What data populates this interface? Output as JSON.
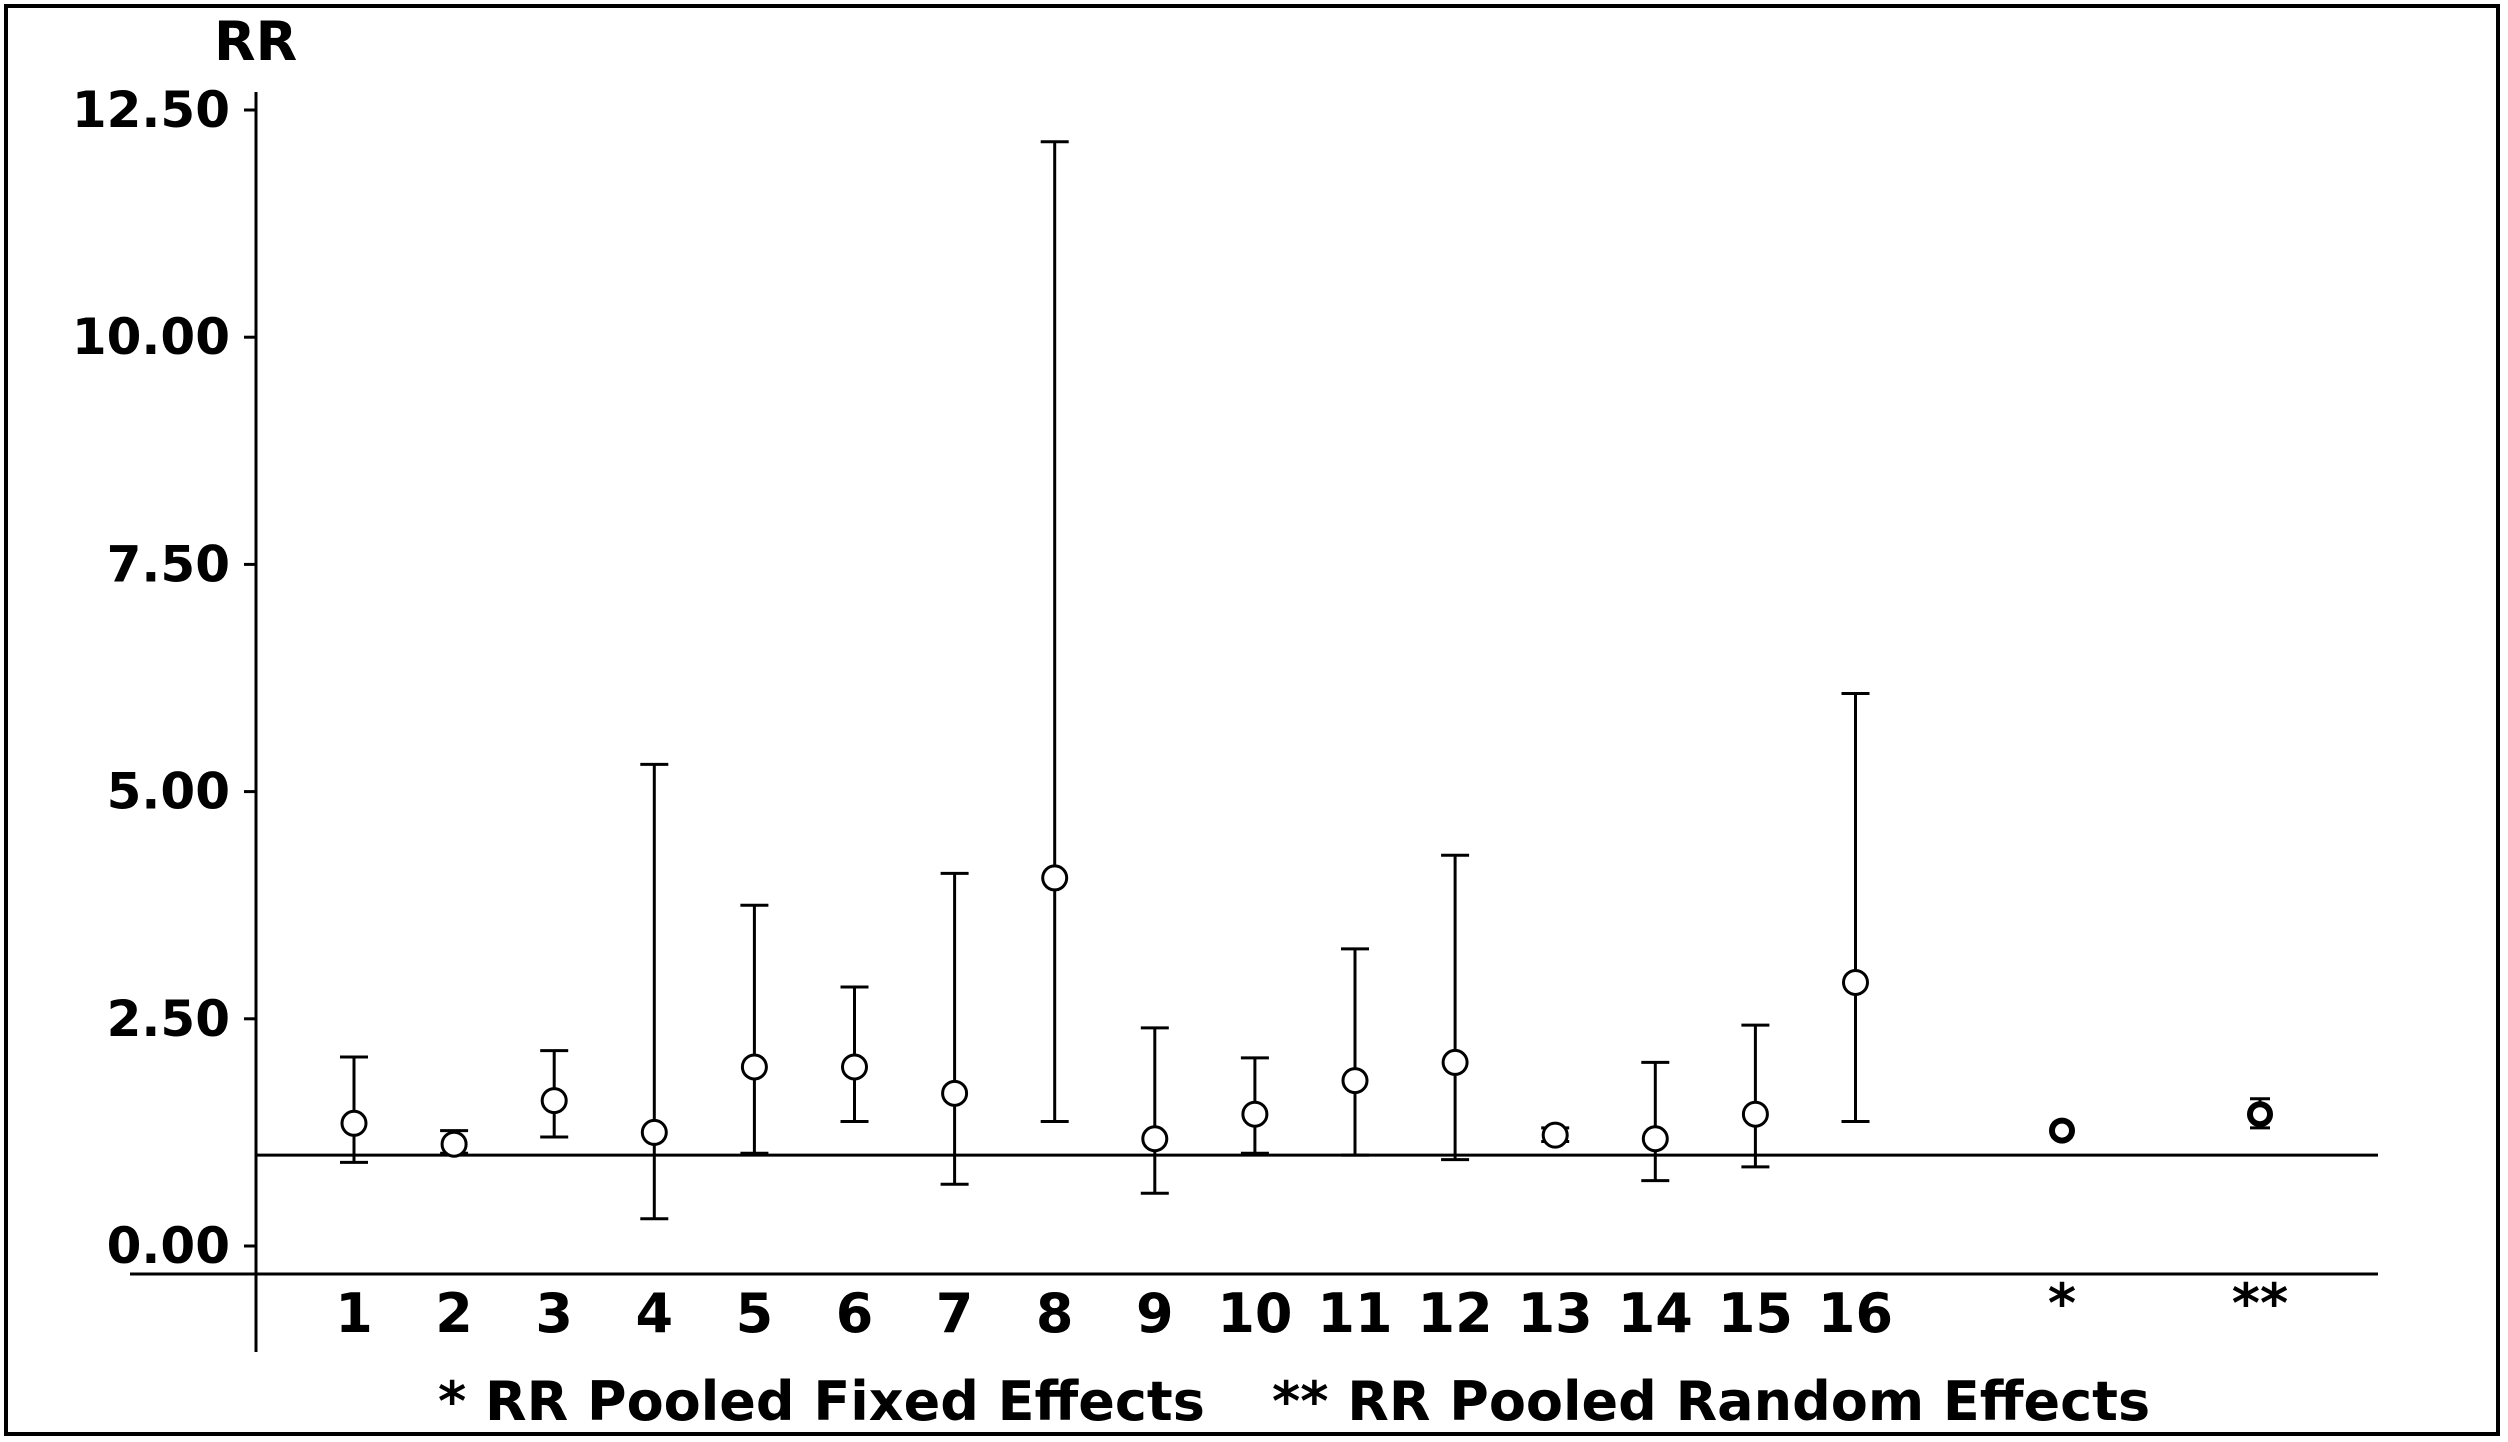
{
  "chart_data": {
    "type": "scatter",
    "ylabel": "RR",
    "ylim": [
      0,
      12.5
    ],
    "y_ticks": [
      "12.50",
      "10.00",
      "7.50",
      "5.00",
      "2.50",
      "0.00"
    ],
    "reference_line": 1.0,
    "grid": false,
    "categories": [
      "1",
      "2",
      "3",
      "4",
      "5",
      "6",
      "7",
      "8",
      "9",
      "10",
      "11",
      "12",
      "13",
      "14",
      "15",
      "16",
      "*",
      "**"
    ],
    "points": [
      {
        "label": "1",
        "rr": 1.35,
        "lower": 0.92,
        "upper": 2.08,
        "pooled": false
      },
      {
        "label": "2",
        "rr": 1.12,
        "lower": 1.02,
        "upper": 1.27,
        "pooled": false
      },
      {
        "label": "3",
        "rr": 1.6,
        "lower": 1.2,
        "upper": 2.15,
        "pooled": false
      },
      {
        "label": "4",
        "rr": 1.25,
        "lower": 0.3,
        "upper": 5.3,
        "pooled": false
      },
      {
        "label": "5",
        "rr": 1.97,
        "lower": 1.02,
        "upper": 3.75,
        "pooled": false
      },
      {
        "label": "6",
        "rr": 1.97,
        "lower": 1.37,
        "upper": 2.85,
        "pooled": false
      },
      {
        "label": "7",
        "rr": 1.68,
        "lower": 0.68,
        "upper": 4.1,
        "pooled": false
      },
      {
        "label": "8",
        "rr": 4.05,
        "lower": 1.37,
        "upper": 12.15,
        "pooled": false
      },
      {
        "label": "9",
        "rr": 1.18,
        "lower": 0.58,
        "upper": 2.4,
        "pooled": false
      },
      {
        "label": "10",
        "rr": 1.45,
        "lower": 1.02,
        "upper": 2.07,
        "pooled": false
      },
      {
        "label": "11",
        "rr": 1.82,
        "lower": 1.0,
        "upper": 3.27,
        "pooled": false
      },
      {
        "label": "12",
        "rr": 2.02,
        "lower": 0.95,
        "upper": 4.3,
        "pooled": false
      },
      {
        "label": "13",
        "rr": 1.22,
        "lower": 1.15,
        "upper": 1.3,
        "pooled": false
      },
      {
        "label": "14",
        "rr": 1.18,
        "lower": 0.72,
        "upper": 2.02,
        "pooled": false
      },
      {
        "label": "15",
        "rr": 1.45,
        "lower": 0.87,
        "upper": 2.43,
        "pooled": false
      },
      {
        "label": "16",
        "rr": 2.9,
        "lower": 1.37,
        "upper": 6.08,
        "pooled": false
      },
      {
        "label": "*",
        "rr": 1.27,
        "lower": 1.2,
        "upper": 1.35,
        "pooled": true
      },
      {
        "label": "**",
        "rr": 1.45,
        "lower": 1.3,
        "upper": 1.62,
        "pooled": true
      }
    ],
    "notes": {
      "fixed": "* RR Pooled Fixed Effects",
      "random": "** RR Pooled Random Effects"
    }
  }
}
